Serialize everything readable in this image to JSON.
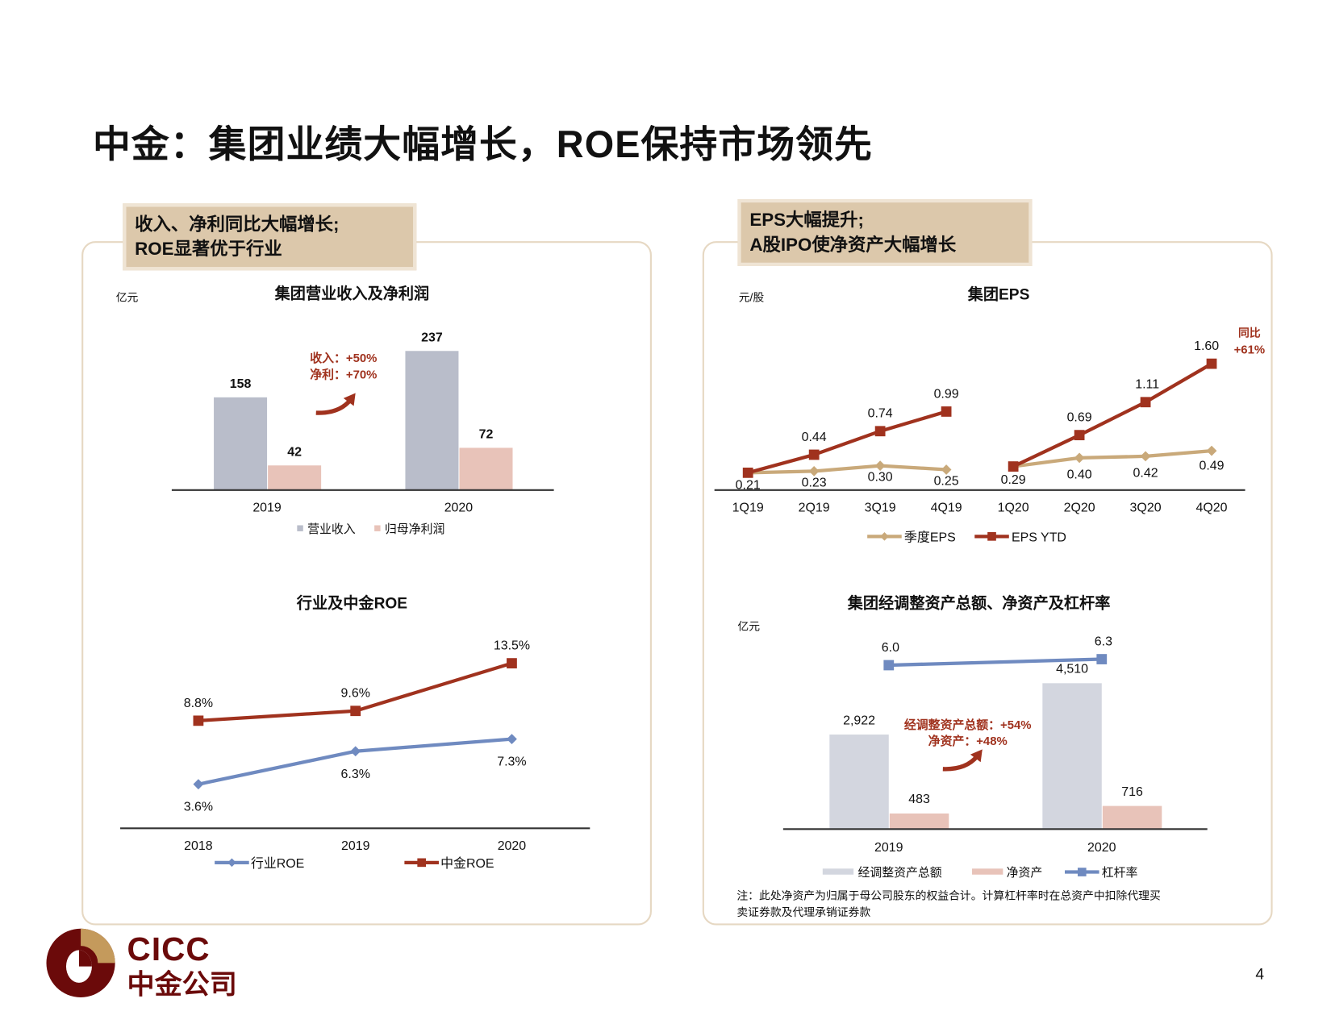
{
  "title": "中金：集团业绩大幅增长，ROE保持市场领先",
  "page_number": "4",
  "logo": {
    "en": "CICC",
    "cn": "中金公司",
    "colors": {
      "dark": "#6b0a0a",
      "gold": "#c49a5c"
    }
  },
  "left_panel": {
    "header_line1": "收入、净利同比大幅增长;",
    "header_line2": "ROE显著优于行业"
  },
  "right_panel": {
    "header_line1": "EPS大幅提升;",
    "header_line2": "A股IPO使净资产大幅增长"
  },
  "colors": {
    "accent": "#a0321e",
    "header_bg": "#dcc8ab",
    "panel_border": "#e6d8c3"
  },
  "chart_data": [
    {
      "type": "bar",
      "title": "集团营业收入及净利润",
      "unit": "亿元",
      "categories": [
        "2019",
        "2020"
      ],
      "series": [
        {
          "name": "营业收入",
          "values": [
            158,
            237
          ],
          "color": "#b9bdca"
        },
        {
          "name": "归母净利润",
          "values": [
            42,
            72
          ],
          "color": "#e8c3b9"
        }
      ],
      "annotation": [
        "收入：+50%",
        "净利：+70%"
      ],
      "legend": "bottom"
    },
    {
      "type": "line",
      "title": "行业及中金ROE",
      "categories": [
        "2018",
        "2019",
        "2020"
      ],
      "series": [
        {
          "name": "行业ROE",
          "values": [
            3.6,
            6.3,
            7.3
          ],
          "labels": [
            "3.6%",
            "6.3%",
            "7.3%"
          ],
          "color": "#6f8ac0",
          "marker": "diamond"
        },
        {
          "name": "中金ROE",
          "values": [
            8.8,
            9.6,
            13.5
          ],
          "labels": [
            "8.8%",
            "9.6%",
            "13.5%"
          ],
          "color": "#a0321e",
          "marker": "square"
        }
      ],
      "legend": "bottom"
    },
    {
      "type": "line",
      "title": "集团EPS",
      "unit": "元/股",
      "categories": [
        "1Q19",
        "2Q19",
        "3Q19",
        "4Q19",
        "1Q20",
        "2Q20",
        "3Q20",
        "4Q20"
      ],
      "series": [
        {
          "name": "季度EPS",
          "values": [
            0.21,
            0.23,
            0.3,
            0.25,
            0.29,
            0.4,
            0.42,
            0.49
          ],
          "labels": [
            "0.21",
            "0.23",
            "0.30",
            "0.25",
            "0.29",
            "0.40",
            "0.42",
            "0.49"
          ],
          "color": "#c9a97a",
          "marker": "diamond"
        },
        {
          "name": "EPS YTD",
          "values": [
            0.21,
            0.44,
            0.74,
            0.99,
            0.29,
            0.69,
            1.11,
            1.6
          ],
          "labels": [
            "",
            "0.44",
            "0.74",
            "0.99",
            "",
            "0.69",
            "1.11",
            "1.60"
          ],
          "color": "#a0321e",
          "marker": "square"
        }
      ],
      "annotation": [
        "同比",
        "+61%"
      ],
      "legend": "bottom"
    },
    {
      "type": "bar",
      "title": "集团经调整资产总额、净资产及杠杆率",
      "unit": "亿元",
      "categories": [
        "2019",
        "2020"
      ],
      "series": [
        {
          "name": "经调整资产总额",
          "values": [
            2922,
            4510
          ],
          "labels": [
            "2,922",
            "4,510"
          ],
          "color": "#d3d6df"
        },
        {
          "name": "净资产",
          "values": [
            483,
            716
          ],
          "labels": [
            "483",
            "716"
          ],
          "color": "#e8c3b9"
        },
        {
          "name": "杠杆率",
          "type": "line",
          "values": [
            6.0,
            6.3
          ],
          "labels": [
            "6.0",
            "6.3"
          ],
          "color": "#6f8ac0",
          "marker": "square"
        }
      ],
      "annotation": [
        "经调整资产总额：+54%",
        "净资产：+48%"
      ],
      "note": [
        "注：此处净资产为归属于母公司股东的权益合计。计算杠杆率时在总资产中扣除代理买",
        "卖证券款及代理承销证券款"
      ],
      "legend": "bottom"
    }
  ]
}
